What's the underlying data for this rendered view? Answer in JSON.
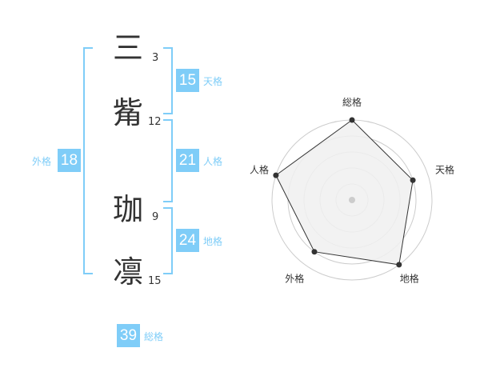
{
  "name": {
    "characters": [
      {
        "char": "三",
        "strokes": "3"
      },
      {
        "char": "觜",
        "strokes": "12"
      },
      {
        "char": "珈",
        "strokes": "9"
      },
      {
        "char": "凛",
        "strokes": "15"
      }
    ]
  },
  "fortunes": {
    "tenkaku": {
      "label": "天格",
      "value": "15"
    },
    "jinkaku": {
      "label": "人格",
      "value": "21"
    },
    "chikaku": {
      "label": "地格",
      "value": "24"
    },
    "gaikaku": {
      "label": "外格",
      "value": "18"
    },
    "soukaku": {
      "label": "総格",
      "value": "39"
    }
  },
  "chart_data": {
    "type": "radar",
    "axes": [
      "総格",
      "天格",
      "地格",
      "外格",
      "人格"
    ],
    "values": [
      5,
      4,
      5,
      4,
      5
    ],
    "range": [
      0,
      5
    ],
    "rings": 5,
    "colors": {
      "fill": "#f0f0f0",
      "line": "#333333",
      "ring": "#cccccc",
      "accent": "#7fcdf8"
    }
  }
}
